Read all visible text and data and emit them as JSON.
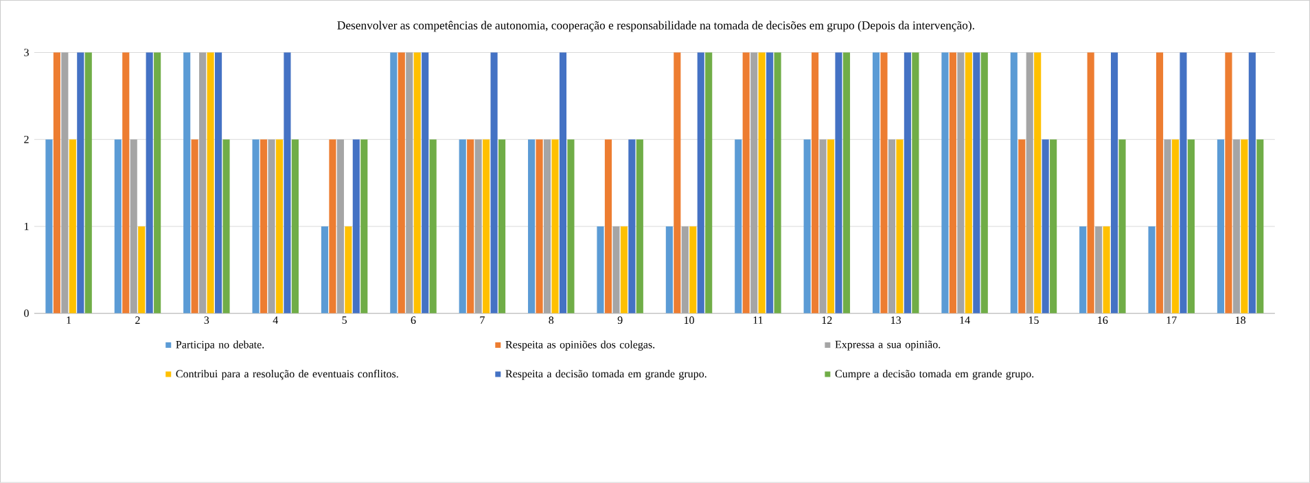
{
  "chart_data": {
    "type": "bar",
    "title": "Desenvolver as competências de autonomia, cooperação e responsabilidade na tomada de decisões em grupo (Depois da intervenção).",
    "categories": [
      "1",
      "2",
      "3",
      "4",
      "5",
      "6",
      "7",
      "8",
      "9",
      "10",
      "11",
      "12",
      "13",
      "14",
      "15",
      "16",
      "17",
      "18"
    ],
    "series": [
      {
        "name": "Participa no debate.",
        "color": "#5b9bd5",
        "values": [
          2,
          2,
          3,
          2,
          1,
          3,
          2,
          2,
          1,
          1,
          2,
          2,
          3,
          3,
          3,
          1,
          1,
          2
        ]
      },
      {
        "name": "Respeita as opiniões dos colegas.",
        "color": "#ed7d31",
        "values": [
          3,
          3,
          2,
          2,
          2,
          3,
          2,
          2,
          2,
          3,
          3,
          3,
          3,
          3,
          2,
          3,
          3,
          3
        ]
      },
      {
        "name": "Expressa a sua opinião.",
        "color": "#a5a5a5",
        "values": [
          3,
          2,
          3,
          2,
          2,
          3,
          2,
          2,
          1,
          1,
          3,
          2,
          2,
          3,
          3,
          1,
          2,
          2
        ]
      },
      {
        "name": "Contribui para a resolução de eventuais conflitos.",
        "color": "#ffc000",
        "values": [
          2,
          1,
          3,
          2,
          1,
          3,
          2,
          2,
          1,
          1,
          3,
          2,
          2,
          3,
          3,
          1,
          2,
          2
        ]
      },
      {
        "name": "Respeita a decisão tomada em grande grupo.",
        "color": "#4472c4",
        "values": [
          3,
          3,
          3,
          3,
          2,
          3,
          3,
          3,
          2,
          3,
          3,
          3,
          3,
          3,
          2,
          3,
          3,
          3
        ]
      },
      {
        "name": "Cumpre a decisão tomada em grande grupo.",
        "color": "#70ad47",
        "values": [
          3,
          3,
          2,
          2,
          2,
          2,
          2,
          2,
          2,
          3,
          3,
          3,
          3,
          3,
          2,
          2,
          2,
          2
        ]
      }
    ],
    "ylim": [
      0,
      3
    ],
    "yticks": [
      0,
      1,
      2,
      3
    ],
    "grid": "y",
    "legend": "bottom"
  }
}
